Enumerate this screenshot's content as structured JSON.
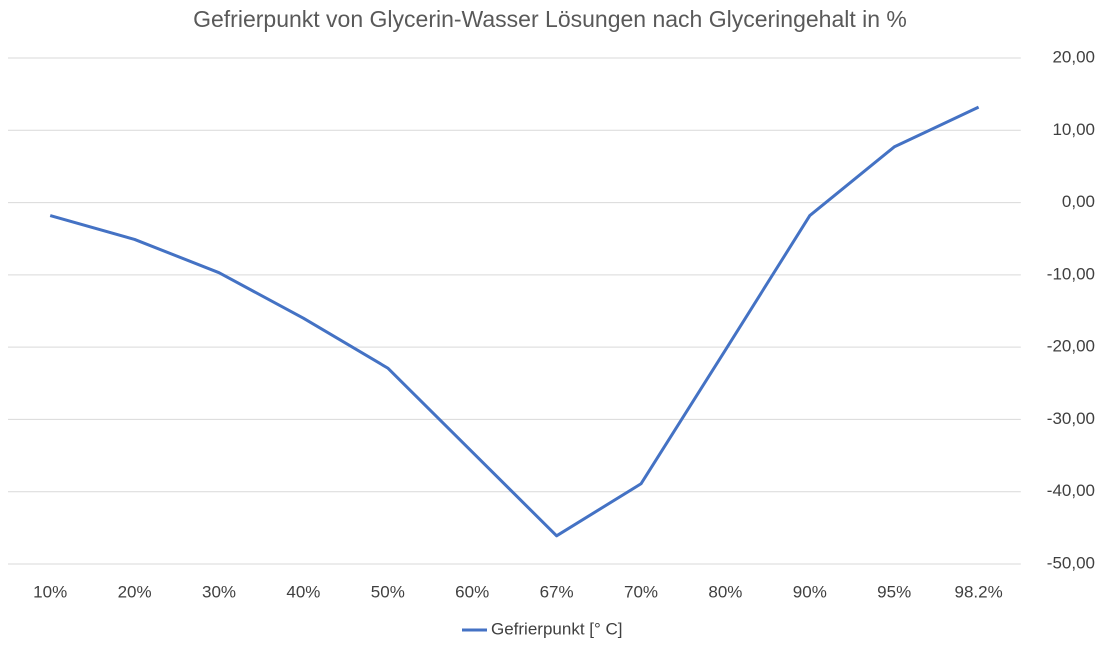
{
  "chart_data": {
    "type": "line",
    "title": "Gefrierpunkt von Glycerin-Wasser Lösungen nach Glyceringehalt in %",
    "categories": [
      "10%",
      "20%",
      "30%",
      "40%",
      "50%",
      "60%",
      "67%",
      "70%",
      "80%",
      "90%",
      "95%",
      "98.2%"
    ],
    "series": [
      {
        "name": "Gefrierpunkt [° C]",
        "color": "#4472c4",
        "values": [
          -1.8,
          -5.1,
          -9.7,
          -16,
          -22.9,
          -34.5,
          -46.1,
          -38.9,
          -20.4,
          -1.8,
          7.7,
          13.2
        ]
      }
    ],
    "ylim": [
      -50,
      20
    ],
    "yticks": [
      {
        "value": -50,
        "label": "-50,00"
      },
      {
        "value": -40,
        "label": "-40,00"
      },
      {
        "value": -30,
        "label": "-30,00"
      },
      {
        "value": -20,
        "label": "-20,00"
      },
      {
        "value": -10,
        "label": "-10,00"
      },
      {
        "value": 0,
        "label": "0,00"
      },
      {
        "value": 10,
        "label": "10,00"
      },
      {
        "value": 20,
        "label": "20,00"
      }
    ],
    "grid": true,
    "legend": "bottom"
  }
}
